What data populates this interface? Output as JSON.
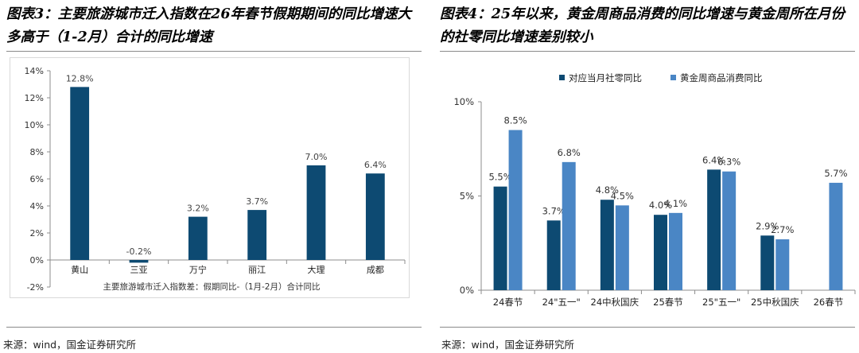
{
  "figure3": {
    "title": "图表3：主要旅游城市迁入指数在26年春节假期期间的同比增速大多高于（1-2月）合计的同比增速",
    "source": "来源：wind，国金证券研究所",
    "chart_data": {
      "type": "bar",
      "categories": [
        "黄山",
        "三亚",
        "万宁",
        "丽江",
        "大理",
        "成都"
      ],
      "values": [
        12.8,
        -0.2,
        3.2,
        3.7,
        7.0,
        6.4
      ],
      "value_labels": [
        "12.8%",
        "-0.2%",
        "3.2%",
        "3.7%",
        "7.0%",
        "6.4%"
      ],
      "y_ticks": [
        "14%",
        "12%",
        "10%",
        "8%",
        "6%",
        "4%",
        "2%",
        "0%",
        "-2%"
      ],
      "ylim": [
        -2,
        14
      ],
      "legend": "主要旅游城市迁入指数差：假期同比-（1月-2月）合计同比",
      "color": "#0d4a72",
      "grid": false
    }
  },
  "figure4": {
    "title": "图表4：25年以来，黄金周商品消费的同比增速与黄金周所在月份的社零同比增速差别较小",
    "source": "来源：wind，国金证券研究所",
    "chart_data": {
      "type": "bar",
      "categories": [
        "24春节",
        "24\"五一\"",
        "24中秋国庆",
        "25春节",
        "25\"五一\"",
        "25中秋国庆",
        "26春节"
      ],
      "series": [
        {
          "name": "对应当月社零同比",
          "color": "#0d4a72",
          "values": [
            5.5,
            3.7,
            4.8,
            4.0,
            6.4,
            2.9,
            null
          ],
          "labels": [
            "5.5%",
            "3.7%",
            "4.8%",
            "4.0%",
            "6.4%",
            "2.9%",
            ""
          ]
        },
        {
          "name": "黄金周商品消费同比",
          "color": "#4a86c5",
          "values": [
            8.5,
            6.8,
            4.5,
            4.1,
            6.3,
            2.7,
            5.7
          ],
          "labels": [
            "8.5%",
            "6.8%",
            "4.5%",
            "4.1%",
            "6.3%",
            "2.7%",
            "5.7%"
          ]
        }
      ],
      "y_ticks": [
        "10%",
        "5%",
        "0%"
      ],
      "ylim": [
        0,
        10
      ],
      "legend_position": "top",
      "grid": false
    }
  }
}
